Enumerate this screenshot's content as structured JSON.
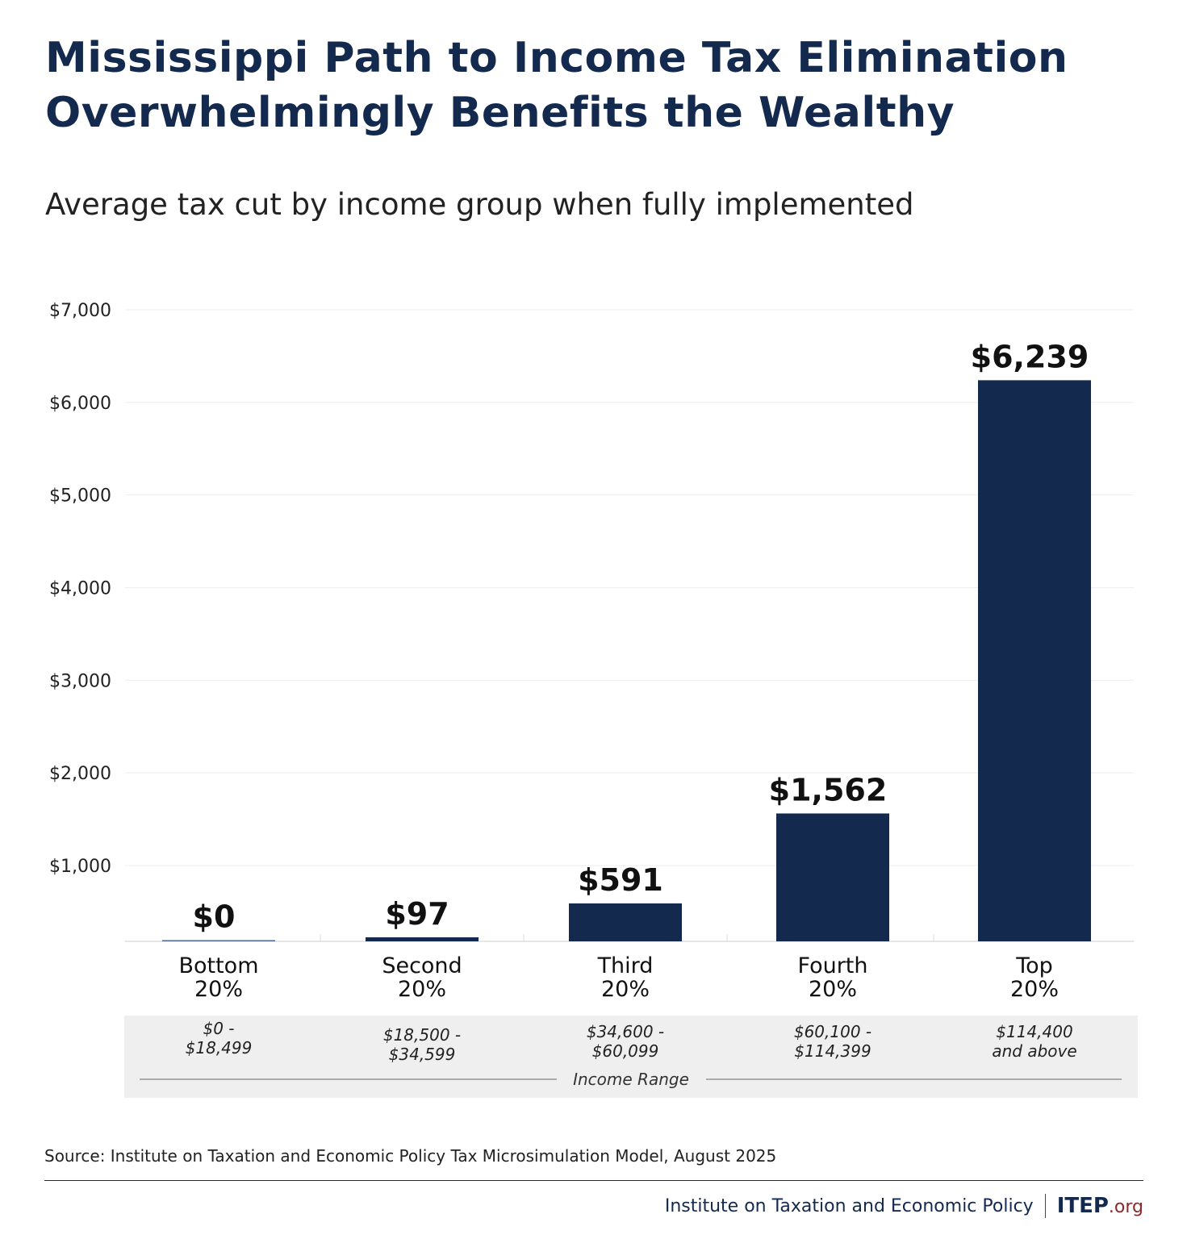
{
  "title_line1": "Mississippi Path to Income Tax Elimination",
  "title_line2": "Overwhelmingly Benefits the Wealthy",
  "subtitle": "Average tax cut by income group when fully implemented",
  "chart_data": {
    "type": "bar",
    "title": "Mississippi Path to Income Tax Elimination Overwhelmingly Benefits the Wealthy",
    "subtitle": "Average tax cut by income group when fully implemented",
    "categories": [
      "Bottom 20%",
      "Second 20%",
      "Third 20%",
      "Fourth 20%",
      "Top 20%"
    ],
    "category_lines": [
      [
        "Bottom",
        "20%"
      ],
      [
        "Second",
        "20%"
      ],
      [
        "Third",
        "20%"
      ],
      [
        "Fourth",
        "20%"
      ],
      [
        "Top",
        "20%"
      ]
    ],
    "income_ranges": [
      [
        "$0 -",
        "$18,499"
      ],
      [
        "$18,500 -",
        "$34,599"
      ],
      [
        "$34,600 -",
        "$60,099"
      ],
      [
        "$60,100 -",
        "$114,399"
      ],
      [
        "$114,400",
        "and above"
      ]
    ],
    "income_range_label": "Income Range",
    "values": [
      0,
      97,
      591,
      1562,
      6239
    ],
    "data_labels": [
      "$0",
      "$97",
      "$591",
      "$1,562",
      "$6,239"
    ],
    "yticks": [
      1000,
      2000,
      3000,
      4000,
      5000,
      6000,
      7000
    ],
    "ytick_labels": [
      "$1,000",
      "$2,000",
      "$3,000",
      "$4,000",
      "$5,000",
      "$6,000",
      "$7,000"
    ],
    "ylim": [
      0,
      7000
    ],
    "xlabel": "",
    "ylabel": "",
    "grid": true,
    "bar_color": "#132a4e"
  },
  "source": "Source: Institute on Taxation and Economic Policy Tax Microsimulation Model, August 2025",
  "footer": {
    "org_name": "Institute on Taxation and Economic Policy",
    "logo_main": "ITEP",
    "logo_suffix": ".org"
  }
}
